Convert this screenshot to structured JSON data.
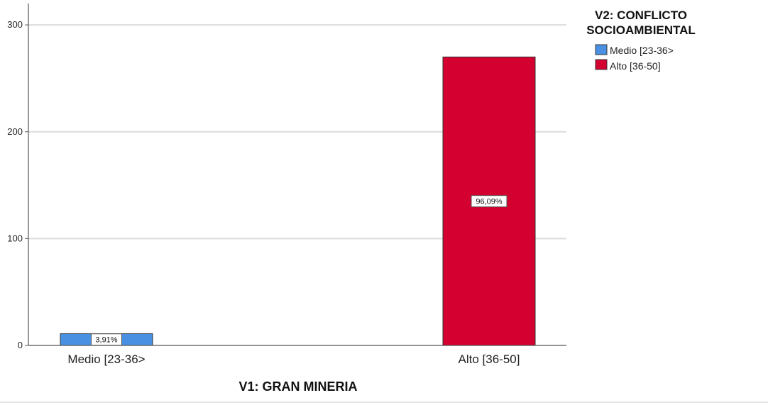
{
  "chart_data": {
    "type": "bar",
    "title": "",
    "xlabel": "V1: GRAN MINERIA",
    "ylabel": "",
    "categories": [
      "Medio [23-36>",
      "Alto [36-50]"
    ],
    "values": [
      11,
      270
    ],
    "data_labels": [
      "3,91%",
      "96,09%"
    ],
    "bar_colors": [
      "#4a90e2",
      "#d40030"
    ],
    "ylim": [
      0,
      320
    ],
    "yticks": [
      0,
      100,
      200,
      300
    ],
    "grid": true,
    "legend": {
      "title_lines": [
        "V2: CONFLICTO",
        "SOCIOAMBIENTAL"
      ],
      "placement": "top-right",
      "items": [
        {
          "label": "Medio [23-36>",
          "color": "#4a90e2"
        },
        {
          "label": "Alto [36-50]",
          "color": "#d40030"
        }
      ]
    }
  }
}
